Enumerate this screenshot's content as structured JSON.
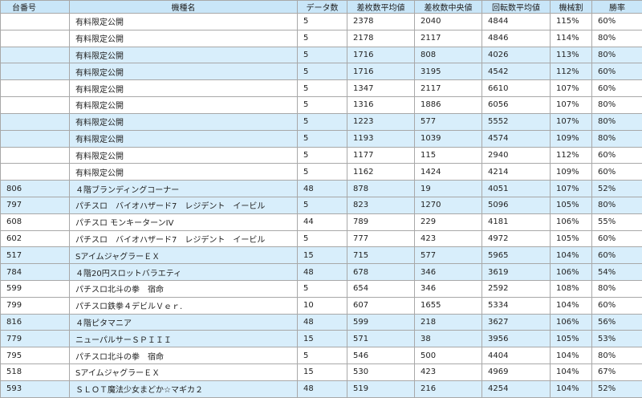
{
  "table": {
    "header": [
      "台番号",
      "機種名",
      "データ数",
      "差枚数平均値",
      "差枚数中央値",
      "回転数平均値",
      "機械割",
      "勝率"
    ],
    "rows": [
      [
        null,
        "有料限定公開",
        "5",
        "2378",
        "2040",
        "4844",
        "115%",
        "60%"
      ],
      [
        null,
        "有料限定公開",
        "5",
        "2178",
        "2117",
        "4846",
        "114%",
        "80%"
      ],
      [
        null,
        "有料限定公開",
        "5",
        "1716",
        "808",
        "4026",
        "113%",
        "80%"
      ],
      [
        null,
        "有料限定公開",
        "5",
        "1716",
        "3195",
        "4542",
        "112%",
        "60%"
      ],
      [
        null,
        "有料限定公開",
        "5",
        "1347",
        "2117",
        "6610",
        "107%",
        "60%"
      ],
      [
        null,
        "有料限定公開",
        "5",
        "1316",
        "1886",
        "6056",
        "107%",
        "80%"
      ],
      [
        null,
        "有料限定公開",
        "5",
        "1223",
        "577",
        "5552",
        "107%",
        "80%"
      ],
      [
        null,
        "有料限定公開",
        "5",
        "1193",
        "1039",
        "4574",
        "109%",
        "80%"
      ],
      [
        null,
        "有料限定公開",
        "5",
        "1177",
        "115",
        "2940",
        "112%",
        "60%"
      ],
      [
        null,
        "有料限定公開",
        "5",
        "1162",
        "1424",
        "4214",
        "109%",
        "60%"
      ],
      [
        "806",
        "４階ブランディングコーナー",
        "48",
        "878",
        "19",
        "4051",
        "107%",
        "52%"
      ],
      [
        "797",
        "パチスロ　バイオハザード7　レジデント　イービル",
        "5",
        "823",
        "1270",
        "5096",
        "105%",
        "80%"
      ],
      [
        "608",
        "パチスロ モンキーターンIV",
        "44",
        "789",
        "229",
        "4181",
        "106%",
        "55%"
      ],
      [
        "602",
        "パチスロ　バイオハザード7　レジデント　イービル",
        "5",
        "777",
        "423",
        "4972",
        "105%",
        "60%"
      ],
      [
        "517",
        "SアイムジャグラーＥＸ",
        "15",
        "715",
        "577",
        "5965",
        "104%",
        "60%"
      ],
      [
        "784",
        "４階20円スロットバラエティ",
        "48",
        "678",
        "346",
        "3619",
        "106%",
        "54%"
      ],
      [
        "599",
        "パチスロ北斗の拳　宿命",
        "5",
        "654",
        "346",
        "2592",
        "108%",
        "80%"
      ],
      [
        "799",
        "パチスロ鉄拳４デビルＶｅｒ.",
        "10",
        "607",
        "1655",
        "5334",
        "104%",
        "60%"
      ],
      [
        "816",
        "４階ピタマニア",
        "48",
        "599",
        "218",
        "3627",
        "106%",
        "56%"
      ],
      [
        "779",
        "ニューパルサーＳＰＩＩＩ",
        "15",
        "571",
        "38",
        "3956",
        "105%",
        "53%"
      ],
      [
        "795",
        "パチスロ北斗の拳　宿命",
        "5",
        "546",
        "500",
        "4404",
        "104%",
        "80%"
      ],
      [
        "518",
        "SアイムジャグラーＥＸ",
        "15",
        "530",
        "423",
        "4969",
        "104%",
        "67%"
      ],
      [
        "593",
        "ＳＬＯＴ魔法少女まどか☆マギカ２",
        "48",
        "519",
        "216",
        "4254",
        "104%",
        "52%"
      ]
    ]
  }
}
